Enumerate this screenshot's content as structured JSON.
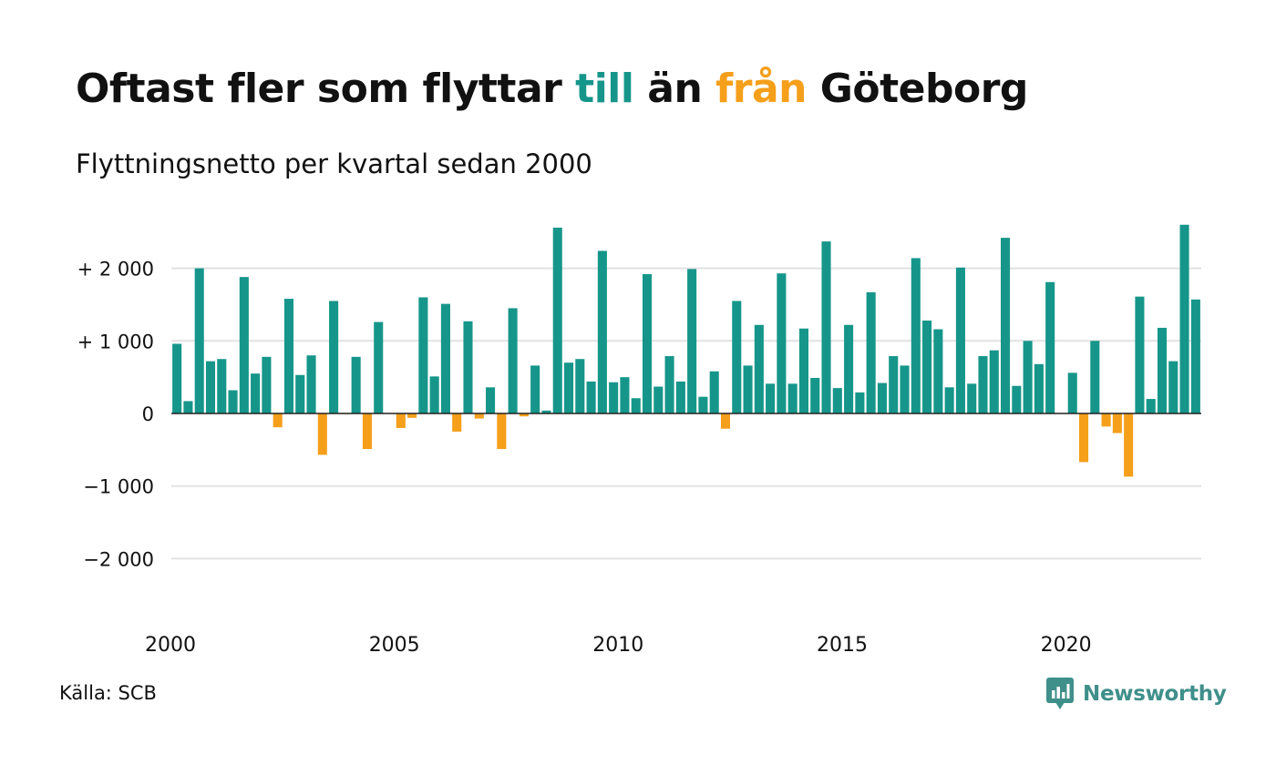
{
  "title": {
    "part1": "Oftast fler som flyttar ",
    "to_word": "till",
    "part2": " än ",
    "from_word": "från",
    "part3": " Göteborg"
  },
  "subtitle": "Flyttningsnetto per kvartal sedan 2000",
  "source": "Källa: SCB",
  "logo": {
    "text": "Newsworthy",
    "icon": "newsworthy-chart-bubble-icon"
  },
  "colors": {
    "positive": "#16968a",
    "negative": "#f59f1b",
    "grid": "#e2e2e2",
    "zero_line": "#222222",
    "text": "#111111",
    "logo": "#3f8f8a"
  },
  "chart_data": {
    "type": "bar",
    "title": "Oftast fler som flyttar till än från Göteborg",
    "subtitle": "Flyttningsnetto per kvartal sedan 2000",
    "start": "2000 Q1",
    "ylim": [
      -2700,
      2700
    ],
    "y_ticks": [
      2000,
      1000,
      0,
      -1000,
      -2000
    ],
    "y_tick_labels": [
      "+ 2 000",
      "+ 1 000",
      "0",
      "−1 000",
      "−2 000"
    ],
    "x_ticks": [
      "2000",
      "2005",
      "2010",
      "2015",
      "2020"
    ],
    "grid": true,
    "values": [
      960,
      170,
      2000,
      720,
      750,
      320,
      1880,
      550,
      780,
      -190,
      1580,
      530,
      800,
      -570,
      1550,
      -10,
      780,
      -490,
      1260,
      0,
      -200,
      -60,
      1600,
      510,
      1510,
      -250,
      1270,
      -70,
      360,
      -490,
      1450,
      -40,
      660,
      40,
      2560,
      700,
      750,
      440,
      2240,
      430,
      500,
      210,
      1920,
      370,
      790,
      440,
      1990,
      230,
      580,
      -210,
      1550,
      660,
      1220,
      410,
      1930,
      410,
      1170,
      490,
      2370,
      350,
      1220,
      290,
      1670,
      420,
      790,
      660,
      2140,
      1280,
      1160,
      360,
      2010,
      410,
      790,
      870,
      2420,
      380,
      1000,
      680,
      1810,
      0,
      560,
      -670,
      1000,
      -180,
      -270,
      -870,
      1610,
      200,
      1180,
      720,
      2600,
      1570
    ]
  }
}
